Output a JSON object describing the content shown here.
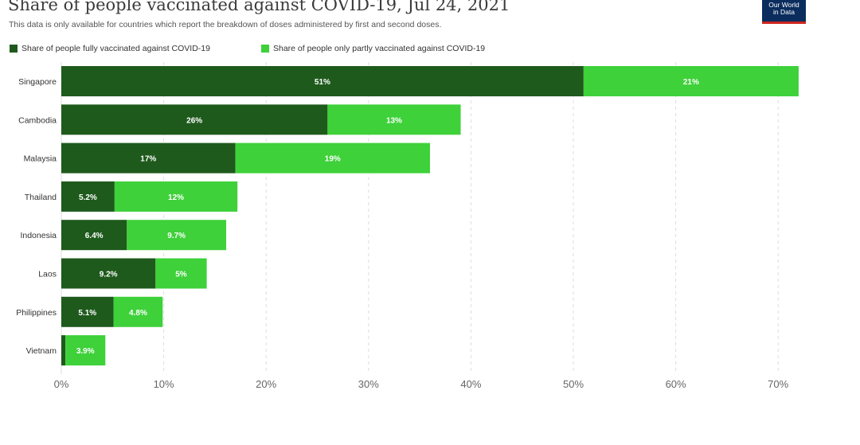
{
  "header": {
    "title": "Share of people vaccinated against COVID-19, Jul 24, 2021",
    "subtitle": "This data is only available for countries which report the breakdown of doses administered by first and second doses.",
    "logo_line1": "Our World",
    "logo_line2": "in Data"
  },
  "colors": {
    "fully": "#1e5a1c",
    "partly": "#3ed13a",
    "grid": "#dddddd"
  },
  "chart_data": {
    "type": "bar",
    "orientation": "horizontal",
    "stacked": true,
    "categories": [
      "Singapore",
      "Cambodia",
      "Malaysia",
      "Thailand",
      "Indonesia",
      "Laos",
      "Philippines",
      "Vietnam"
    ],
    "series": [
      {
        "name": "Share of people fully vaccinated against COVID-19",
        "values": [
          51,
          26,
          17,
          5.2,
          6.4,
          9.2,
          5.1,
          0.4
        ],
        "labels": [
          "51%",
          "26%",
          "17%",
          "5.2%",
          "6.4%",
          "9.2%",
          "5.1%",
          ""
        ]
      },
      {
        "name": "Share of people only partly vaccinated against COVID-19",
        "values": [
          21,
          13,
          19,
          12,
          9.7,
          5,
          4.8,
          3.9
        ],
        "labels": [
          "21%",
          "13%",
          "19%",
          "12%",
          "9.7%",
          "5%",
          "4.8%",
          "3.9%"
        ]
      }
    ],
    "xlim": [
      0,
      72
    ],
    "xticks": [
      0,
      10,
      20,
      30,
      40,
      50,
      60,
      70
    ],
    "xtick_labels": [
      "0%",
      "10%",
      "20%",
      "30%",
      "40%",
      "50%",
      "60%",
      "70%"
    ],
    "grid": true,
    "legend_position": "top-left"
  }
}
